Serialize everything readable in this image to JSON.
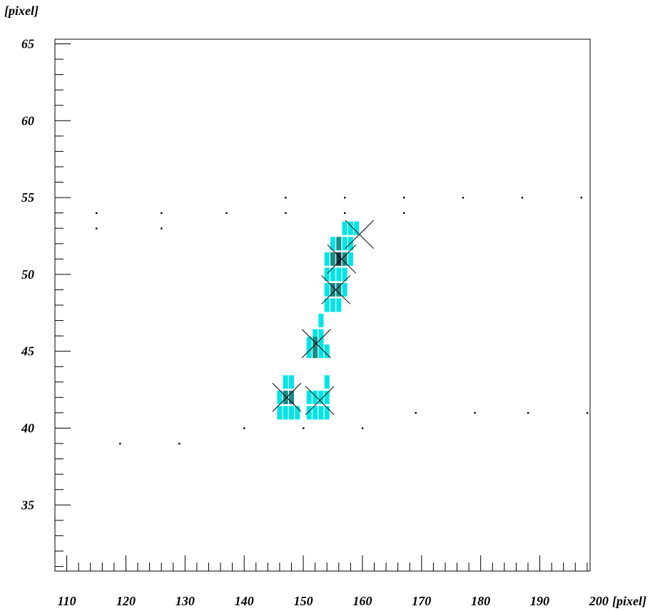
{
  "chart_data": {
    "type": "heatmap",
    "title": "",
    "xlabel": "[pixel]",
    "ylabel": "[pixel]",
    "xlim": [
      108,
      198.5
    ],
    "ylim": [
      30.7,
      65.3
    ],
    "x_ticks": [
      110,
      120,
      130,
      140,
      150,
      160,
      170,
      180,
      190,
      200
    ],
    "y_ticks": [
      35,
      40,
      45,
      50,
      55,
      60,
      65
    ],
    "grid": false,
    "legend": "none",
    "colors": {
      "cyan": "#00e5e5",
      "teal": "#1a8c8c",
      "dark": "#0b3f3f",
      "marker": "#000000",
      "axis": "#000000"
    },
    "cells": [
      [
        157,
        53,
        "cyan"
      ],
      [
        158,
        53,
        "cyan"
      ],
      [
        159,
        53,
        "cyan"
      ],
      [
        155,
        52,
        "cyan"
      ],
      [
        156,
        52,
        "teal"
      ],
      [
        157,
        52,
        "cyan"
      ],
      [
        158,
        52,
        "cyan"
      ],
      [
        154,
        51,
        "cyan"
      ],
      [
        155,
        51,
        "teal"
      ],
      [
        156,
        51,
        "dark"
      ],
      [
        157,
        51,
        "teal"
      ],
      [
        158,
        51,
        "cyan"
      ],
      [
        154,
        50,
        "cyan"
      ],
      [
        155,
        50,
        "cyan"
      ],
      [
        156,
        50,
        "cyan"
      ],
      [
        157,
        50,
        "cyan"
      ],
      [
        154,
        49,
        "cyan"
      ],
      [
        155,
        49,
        "teal"
      ],
      [
        156,
        49,
        "teal"
      ],
      [
        157,
        49,
        "cyan"
      ],
      [
        154,
        48,
        "cyan"
      ],
      [
        155,
        48,
        "cyan"
      ],
      [
        156,
        48,
        "cyan"
      ],
      [
        153,
        47,
        "cyan"
      ],
      [
        152,
        46,
        "cyan"
      ],
      [
        153,
        46,
        "cyan"
      ],
      [
        151,
        45.5,
        "cyan"
      ],
      [
        152,
        45.5,
        "teal"
      ],
      [
        153,
        45.5,
        "cyan"
      ],
      [
        151,
        45,
        "cyan"
      ],
      [
        152,
        45,
        "teal"
      ],
      [
        153,
        45,
        "cyan"
      ],
      [
        154,
        45,
        "cyan"
      ],
      [
        147,
        43,
        "cyan"
      ],
      [
        148,
        43,
        "cyan"
      ],
      [
        154,
        43,
        "cyan"
      ],
      [
        146,
        42,
        "cyan"
      ],
      [
        147,
        42,
        "teal"
      ],
      [
        148,
        42,
        "teal"
      ],
      [
        151,
        42,
        "cyan"
      ],
      [
        152,
        42,
        "cyan"
      ],
      [
        153,
        42,
        "cyan"
      ],
      [
        154,
        42,
        "cyan"
      ],
      [
        146,
        41,
        "cyan"
      ],
      [
        147,
        41,
        "cyan"
      ],
      [
        148,
        41,
        "cyan"
      ],
      [
        149,
        41,
        "cyan"
      ],
      [
        151,
        41,
        "cyan"
      ],
      [
        152,
        41,
        "cyan"
      ],
      [
        153,
        41,
        "cyan"
      ],
      [
        154,
        41,
        "cyan"
      ]
    ],
    "markers": [
      [
        159.5,
        52.6
      ],
      [
        156.5,
        51.0
      ],
      [
        155.5,
        49.0
      ],
      [
        152.2,
        45.5
      ],
      [
        147.2,
        42.0
      ],
      [
        152.8,
        41.8
      ]
    ],
    "dots": [
      [
        115,
        54
      ],
      [
        115,
        53
      ],
      [
        126,
        54
      ],
      [
        126,
        53
      ],
      [
        137,
        54
      ],
      [
        147,
        55
      ],
      [
        147,
        54
      ],
      [
        157,
        55
      ],
      [
        157,
        54
      ],
      [
        167,
        55
      ],
      [
        167,
        54
      ],
      [
        177,
        55
      ],
      [
        187,
        55
      ],
      [
        197,
        55
      ],
      [
        119,
        39
      ],
      [
        129,
        39
      ],
      [
        140,
        40
      ],
      [
        150,
        40
      ],
      [
        160,
        40
      ],
      [
        169,
        41
      ],
      [
        179,
        41
      ],
      [
        188,
        41
      ],
      [
        198,
        41
      ]
    ]
  }
}
